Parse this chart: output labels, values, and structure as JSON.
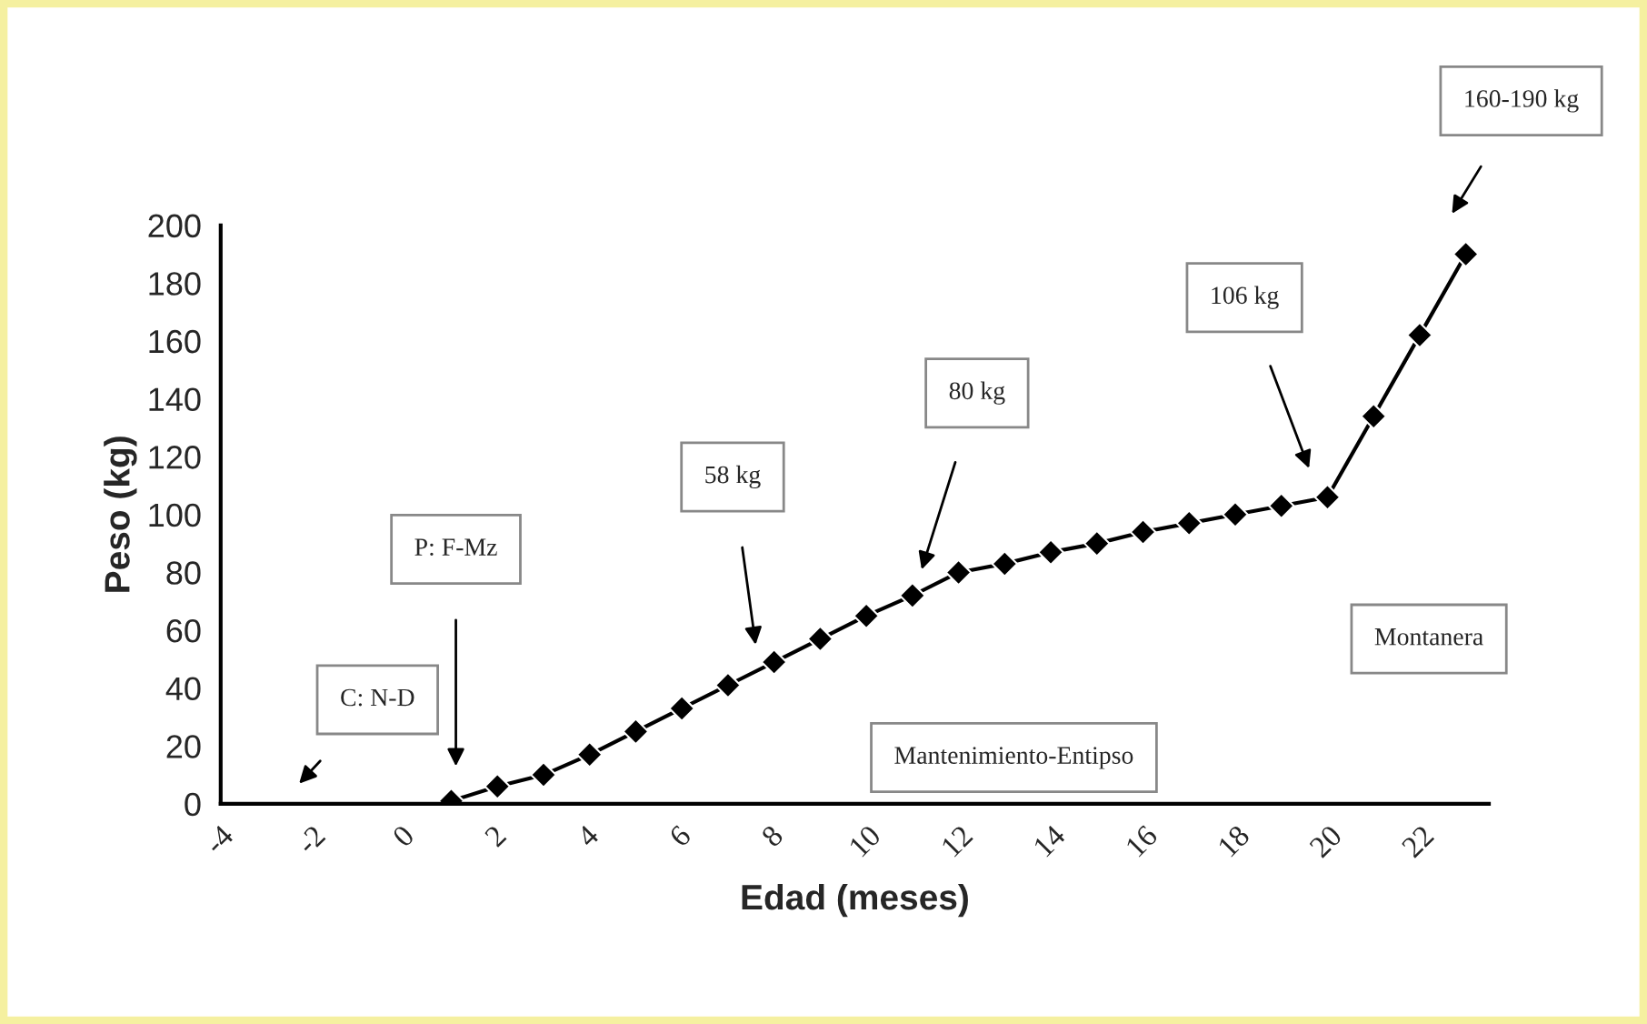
{
  "chart_data": {
    "type": "line",
    "xlabel": "Edad (meses)",
    "ylabel": "Peso (kg)",
    "x": [
      1,
      2,
      3,
      4,
      5,
      6,
      7,
      8,
      9,
      10,
      11,
      12,
      13,
      14,
      15,
      16,
      17,
      18,
      19,
      20,
      21,
      22,
      23
    ],
    "series": [
      {
        "color": "#000000",
        "values": [
          1,
          6,
          10,
          17,
          25,
          33,
          41,
          49,
          57,
          65,
          72,
          80,
          83,
          87,
          90,
          94,
          97,
          100,
          103,
          106,
          134,
          162,
          190
        ]
      }
    ],
    "xlim": [
      -4,
      23.5
    ],
    "xticks": [
      -4,
      -2,
      0,
      2,
      4,
      6,
      8,
      10,
      12,
      14,
      16,
      18,
      20,
      22
    ],
    "ylim": [
      0,
      200
    ],
    "yticks": [
      0,
      20,
      40,
      60,
      80,
      100,
      120,
      140,
      160,
      180,
      200
    ],
    "marker": "diamond",
    "line_style": "solid",
    "grid": false,
    "legend": false,
    "annotations": [
      "C: N-D",
      "P: F-Mz",
      "58 kg",
      "80 kg",
      "106 kg",
      "160-190 kg",
      "Mantenimiento-Entipso",
      "Montanera"
    ]
  }
}
